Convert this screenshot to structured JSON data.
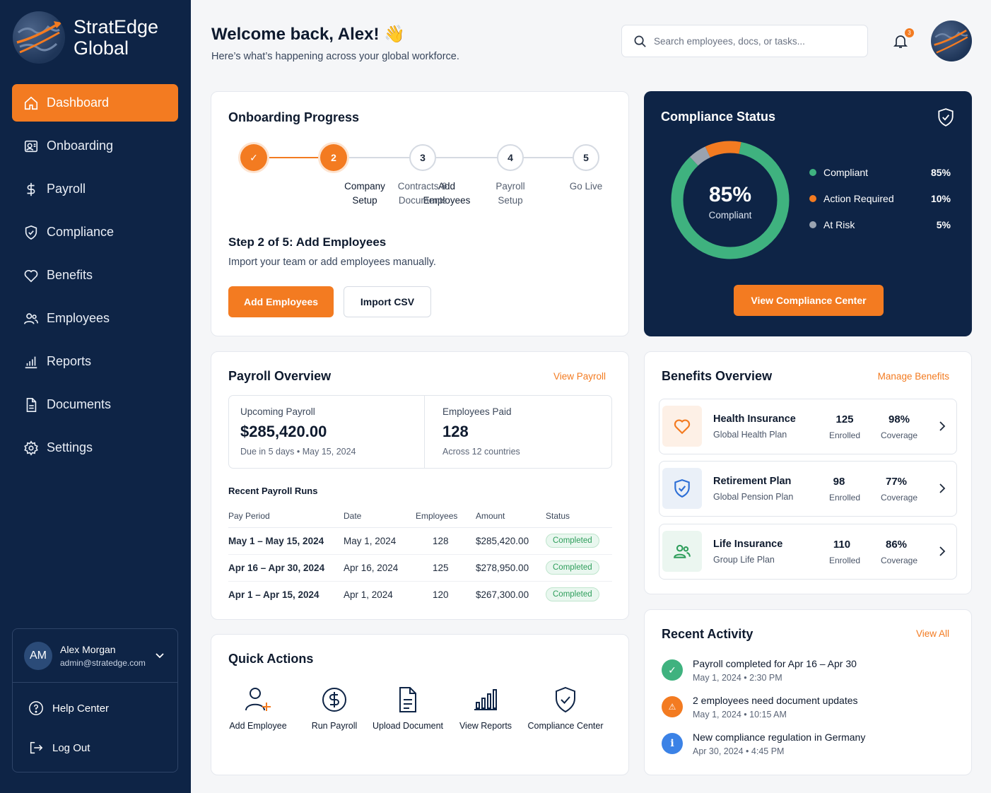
{
  "brand": {
    "name_line1": "StratEdge",
    "name_line2": "Global"
  },
  "nav": [
    {
      "label": "Dashboard",
      "icon": "home-icon",
      "active": true
    },
    {
      "label": "Onboarding",
      "icon": "onboarding-icon"
    },
    {
      "label": "Payroll",
      "icon": "dollar-icon"
    },
    {
      "label": "Compliance",
      "icon": "shield-icon"
    },
    {
      "label": "Benefits",
      "icon": "heart-icon"
    },
    {
      "label": "Employees",
      "icon": "users-icon"
    },
    {
      "label": "Reports",
      "icon": "bar-chart-icon"
    },
    {
      "label": "Documents",
      "icon": "document-icon"
    },
    {
      "label": "Settings",
      "icon": "gear-icon"
    }
  ],
  "user": {
    "initials": "AM",
    "name": "Alex Morgan",
    "email": "admin@stratedge.com",
    "help": "Help Center",
    "logout": "Log Out"
  },
  "header": {
    "welcome": "Welcome back, Alex! 👋",
    "subtitle": "Here’s what’s happening across your global workforce.",
    "search_placeholder": "Search employees, docs, or tasks...",
    "notification_count": "3"
  },
  "onboarding": {
    "title": "Onboarding Progress",
    "steps": [
      {
        "number": "✓",
        "line1": "Company",
        "line2": "Setup",
        "state": "done"
      },
      {
        "number": "2",
        "line1": "Add",
        "line2": "Employees",
        "state": "current"
      },
      {
        "number": "3",
        "line1": "Contracts &",
        "line2": "Documents",
        "state": "todo"
      },
      {
        "number": "4",
        "line1": "Payroll",
        "line2": "Setup",
        "state": "todo"
      },
      {
        "number": "5",
        "line1": "Go Live",
        "line2": "",
        "state": "todo"
      }
    ],
    "step_title": "Step 2 of 5: Add Employees",
    "step_desc": "Import your team or add employees manually.",
    "primary_btn": "Add Employees",
    "secondary_btn": "Import CSV"
  },
  "compliance": {
    "title": "Compliance Status",
    "center_value": "85%",
    "center_label": "Compliant",
    "legend": [
      {
        "label": "Compliant",
        "value": "85%",
        "color": "#3fb27f",
        "pct": 85
      },
      {
        "label": "Action Required",
        "value": "10%",
        "color": "#f37b21",
        "pct": 10
      },
      {
        "label": "At Risk",
        "value": "5%",
        "color": "#9aa3b0",
        "pct": 5
      }
    ],
    "button": "View Compliance Center"
  },
  "payroll": {
    "title": "Payroll Overview",
    "link": "View Payroll",
    "upcoming_label": "Upcoming Payroll",
    "upcoming_value": "$285,420.00",
    "upcoming_sub": "Due in 5 days • May 15, 2024",
    "paid_label": "Employees Paid",
    "paid_value": "128",
    "paid_sub": "Across 12 countries",
    "runs_title": "Recent Payroll Runs",
    "columns": [
      "Pay Period",
      "Date",
      "Employees",
      "Amount",
      "Status"
    ],
    "rows": [
      {
        "period": "May 1 – May 15, 2024",
        "date": "May 1, 2024",
        "employees": "128",
        "amount": "$285,420.00",
        "status": "Completed"
      },
      {
        "period": "Apr 16 – Apr 30, 2024",
        "date": "Apr 16, 2024",
        "employees": "125",
        "amount": "$278,950.00",
        "status": "Completed"
      },
      {
        "period": "Apr 1 – Apr 15, 2024",
        "date": "Apr 1, 2024",
        "employees": "120",
        "amount": "$267,300.00",
        "status": "Completed"
      }
    ]
  },
  "quick_actions": {
    "title": "Quick Actions",
    "items": [
      {
        "label": "Add Employee",
        "icon": "add-user-icon"
      },
      {
        "label": "Run Payroll",
        "icon": "dollar-circle-icon"
      },
      {
        "label": "Upload Document",
        "icon": "document-icon"
      },
      {
        "label": "View Reports",
        "icon": "bar-chart-icon"
      },
      {
        "label": "Compliance Center",
        "icon": "shield-check-icon"
      }
    ]
  },
  "benefits": {
    "title": "Benefits Overview",
    "link": "Manage Benefits",
    "items": [
      {
        "name": "Health Insurance",
        "plan": "Global Health Plan",
        "enrolled": "125",
        "enrolled_label": "Enrolled",
        "coverage": "98%",
        "coverage_label": "Coverage",
        "icon": "heart-icon",
        "color": "#f37b21",
        "bg": "#fdf0e6"
      },
      {
        "name": "Retirement Plan",
        "plan": "Global Pension Plan",
        "enrolled": "98",
        "enrolled_label": "Enrolled",
        "coverage": "77%",
        "coverage_label": "Coverage",
        "icon": "shield-check-icon",
        "color": "#2d6fd6",
        "bg": "#eaf0f8"
      },
      {
        "name": "Life Insurance",
        "plan": "Group Life Plan",
        "enrolled": "110",
        "enrolled_label": "Enrolled",
        "coverage": "86%",
        "coverage_label": "Coverage",
        "icon": "users-icon",
        "color": "#2e9e5b",
        "bg": "#ebf6f0"
      }
    ]
  },
  "activity": {
    "title": "Recent Activity",
    "link": "View All",
    "items": [
      {
        "text": "Payroll completed for Apr 16 – Apr 30",
        "time": "May 1, 2024 • 2:30 PM",
        "icon": "check-icon",
        "color": "#3fb27f",
        "glyph": "✓"
      },
      {
        "text": "2 employees need document updates",
        "time": "May 1, 2024 • 10:15 AM",
        "icon": "warning-icon",
        "color": "#f37b21",
        "glyph": "⚠"
      },
      {
        "text": "New compliance regulation in Germany",
        "time": "Apr 30, 2024 • 4:45 PM",
        "icon": "info-icon",
        "color": "#3b82e6",
        "glyph": "i"
      }
    ]
  }
}
